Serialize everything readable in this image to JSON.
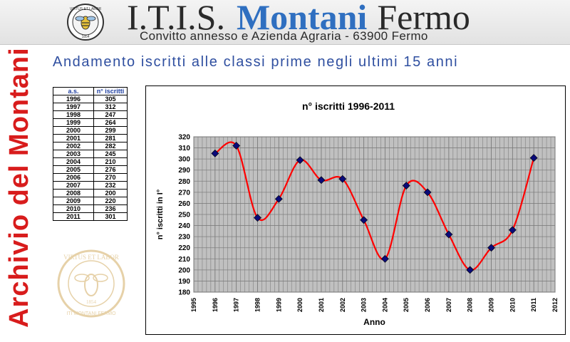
{
  "header": {
    "title_left": "I.T.I.S.",
    "title_mid": "Montani",
    "title_right": "Fermo",
    "subtitle": "Convitto annesso e Azienda Agraria -  63900 Fermo",
    "logo_text": "VIRTUS ET LABOR",
    "logo_year": "1854"
  },
  "side_title": "Archivio del Montani",
  "heading": "Andamento  iscritti alle classi  prime negli ultimi 15 anni",
  "table": {
    "headers": [
      "a.s.",
      "n° iscritti"
    ],
    "rows": [
      [
        "1996",
        "305"
      ],
      [
        "1997",
        "312"
      ],
      [
        "1998",
        "247"
      ],
      [
        "1999",
        "264"
      ],
      [
        "2000",
        "299"
      ],
      [
        "2001",
        "281"
      ],
      [
        "2002",
        "282"
      ],
      [
        "2003",
        "245"
      ],
      [
        "2004",
        "210"
      ],
      [
        "2005",
        "276"
      ],
      [
        "2006",
        "270"
      ],
      [
        "2007",
        "232"
      ],
      [
        "2008",
        "200"
      ],
      [
        "2009",
        "220"
      ],
      [
        "2010",
        "236"
      ],
      [
        "2011",
        "301"
      ]
    ]
  },
  "watermark": {
    "top_text": "VIRTUS ET LABOR",
    "year": "1854",
    "bottom_text": "ITI MONTANI FERMO"
  },
  "colors": {
    "brand_blue": "#2f6fc0",
    "accent_red": "#d81c1c",
    "line": "#ff0000",
    "marker": "#0a0a78",
    "plot_bg": "#c0c0c0",
    "gold": "#c89a40"
  },
  "chart_data": {
    "type": "scatter",
    "title": "n° iscritti 1996-2011",
    "xlabel": "Anno",
    "ylabel": "n° iscritti in I°",
    "xlim": [
      1995,
      2012
    ],
    "ylim": [
      180,
      320
    ],
    "x_ticks": [
      "1995",
      "1996",
      "1997",
      "1998",
      "1999",
      "2000",
      "2001",
      "2002",
      "2003",
      "2004",
      "2005",
      "2006",
      "2007",
      "2008",
      "2009",
      "2010",
      "2011",
      "2012"
    ],
    "y_ticks": [
      "180",
      "190",
      "200",
      "210",
      "220",
      "230",
      "240",
      "250",
      "260",
      "270",
      "280",
      "290",
      "300",
      "310",
      "320"
    ],
    "grid": "vertical and horizontal",
    "legend": "none",
    "series": [
      {
        "x": [
          1996,
          1997,
          1998,
          1999,
          2000,
          2001,
          2002,
          2003,
          2004,
          2005,
          2006,
          2007,
          2008,
          2009,
          2010,
          2011
        ],
        "y": [
          305,
          312,
          247,
          264,
          299,
          281,
          282,
          245,
          210,
          276,
          270,
          232,
          200,
          220,
          236,
          301
        ],
        "smooth_line": true,
        "marker": "diamond"
      }
    ]
  }
}
